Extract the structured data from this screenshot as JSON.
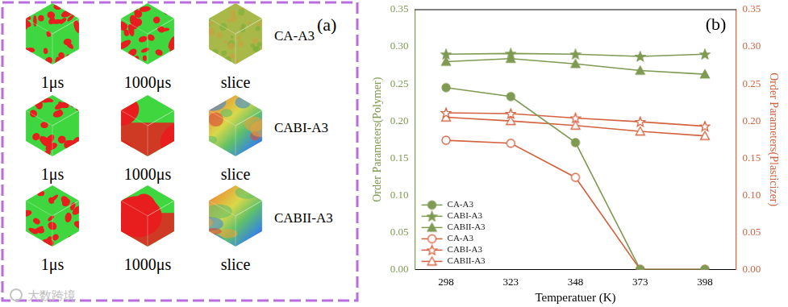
{
  "panel_a": {
    "label": "(a)",
    "columns": [
      "1μs",
      "1000μs",
      "slice"
    ],
    "rows": [
      "CA-A3",
      "CABI-A3",
      "CABII-A3"
    ]
  },
  "watermark": "大数跨境",
  "chart_data": {
    "type": "line",
    "title": "(b)",
    "x_label": "Temperatuer (K)",
    "y_label": "Order Parameters(Polymer)",
    "y2_label": "Order Parameters(Plasticizer)",
    "xlim": [
      286,
      410
    ],
    "xticks": [
      298,
      323,
      348,
      373,
      398
    ],
    "ylim": [
      0,
      0.35
    ],
    "yticks": [
      {
        "value": 0,
        "label": "0.00"
      },
      0.05,
      {
        "value": 0.1,
        "label": "0.10"
      },
      0.15,
      {
        "value": 0.2,
        "label": "0.20"
      },
      0.25,
      {
        "value": 0.3,
        "label": "0.30"
      },
      0.35
    ],
    "y2lim": [
      0,
      0.35
    ],
    "y2ticks": [
      {
        "value": 0,
        "label": "0.00"
      },
      0.05,
      {
        "value": 0.1,
        "label": "0.10"
      },
      0.15,
      {
        "value": 0.2,
        "label": "0.20"
      },
      0.25,
      {
        "value": 0.3,
        "label": "0.30"
      },
      0.35
    ],
    "x": [
      298,
      323,
      348,
      373,
      398
    ],
    "grid": false,
    "legend": "lower left",
    "series": [
      {
        "name": "CA-A3",
        "color": "#7f9a52",
        "marker": "circle",
        "axis": "y",
        "values": [
          0.245,
          0.233,
          0.171,
          0.0,
          0.0
        ]
      },
      {
        "name": "CABI-A3",
        "color": "#7f9a52",
        "marker": "star",
        "axis": "y",
        "values": [
          0.29,
          0.291,
          0.29,
          0.287,
          0.29
        ]
      },
      {
        "name": "CABII-A3",
        "color": "#7f9a52",
        "marker": "triangle",
        "axis": "y",
        "values": [
          0.28,
          0.284,
          0.277,
          0.268,
          0.263
        ]
      },
      {
        "name": "CA-A3",
        "color": "#d4623f",
        "marker": "open_circle",
        "axis": "y2",
        "values": [
          0.174,
          0.17,
          0.124,
          0.0,
          0.0
        ]
      },
      {
        "name": "CABI-A3",
        "color": "#d4623f",
        "marker": "open_star",
        "axis": "y2",
        "values": [
          0.211,
          0.21,
          0.204,
          0.199,
          0.193
        ]
      },
      {
        "name": "CABII-A3",
        "color": "#d4623f",
        "marker": "open_triangle",
        "axis": "y2",
        "values": [
          0.205,
          0.2,
          0.194,
          0.186,
          0.18
        ]
      }
    ]
  }
}
